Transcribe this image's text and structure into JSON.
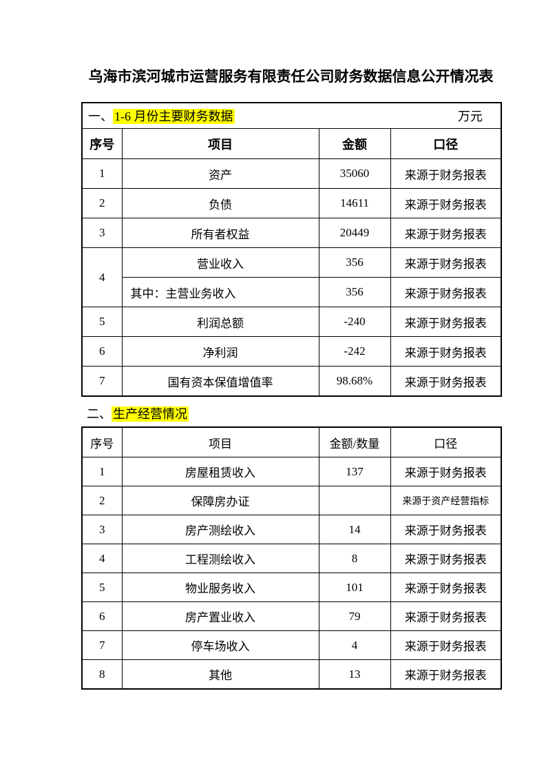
{
  "page": {
    "title": "乌海市滨河城市运营服务有限责任公司财务数据信息公开情况表"
  },
  "colors": {
    "highlight": "#ffff00",
    "text": "#000000",
    "background": "#ffffff"
  },
  "section1": {
    "prefix": "一、",
    "heading": "1-6 月份主要财务数据",
    "unit": "万元",
    "table": {
      "headers": [
        "序号",
        "项目",
        "金额",
        "口径"
      ],
      "rows": [
        {
          "no": "1",
          "item": "资产",
          "amount": "35060",
          "caliber": "来源于财务报表"
        },
        {
          "no": "2",
          "item": "负债",
          "amount": "14611",
          "caliber": "来源于财务报表"
        },
        {
          "no": "3",
          "item": "所有者权益",
          "amount": "20449",
          "caliber": "来源于财务报表"
        },
        {
          "no": "4",
          "rowspan": 2,
          "item": "营业收入",
          "amount": "356",
          "caliber": "来源于财务报表"
        },
        {
          "no": null,
          "item": "其中：主营业务收入",
          "item_align": "left",
          "amount": "356",
          "caliber": "来源于财务报表"
        },
        {
          "no": "5",
          "item": "利润总额",
          "amount": "-240",
          "caliber": "来源于财务报表"
        },
        {
          "no": "6",
          "item": "净利润",
          "amount": "-242",
          "caliber": "来源于财务报表"
        },
        {
          "no": "7",
          "item": "国有资本保值增值率",
          "amount": "98.68%",
          "caliber": "来源于财务报表"
        }
      ]
    }
  },
  "section2": {
    "prefix": "二、",
    "heading": "生产经营情况",
    "table": {
      "headers": [
        "序号",
        "项目",
        "金额/数量",
        "口径"
      ],
      "rows": [
        {
          "no": "1",
          "item": "房屋租赁收入",
          "amount": "137",
          "caliber": "来源于财务报表"
        },
        {
          "no": "2",
          "item": "保障房办证",
          "amount": "",
          "caliber": "来源于资产经营指标",
          "caliber_small": true
        },
        {
          "no": "3",
          "item": "房产测绘收入",
          "amount": "14",
          "caliber": "来源于财务报表"
        },
        {
          "no": "4",
          "item": "工程测绘收入",
          "amount": "8",
          "caliber": "来源于财务报表"
        },
        {
          "no": "5",
          "item": "物业服务收入",
          "amount": "101",
          "caliber": "来源于财务报表"
        },
        {
          "no": "6",
          "item": "房产置业收入",
          "amount": "79",
          "caliber": "来源于财务报表"
        },
        {
          "no": "7",
          "item": "停车场收入",
          "amount": "4",
          "caliber": "来源于财务报表"
        },
        {
          "no": "8",
          "item": "其他",
          "amount": "13",
          "caliber": "来源于财务报表"
        }
      ]
    }
  }
}
